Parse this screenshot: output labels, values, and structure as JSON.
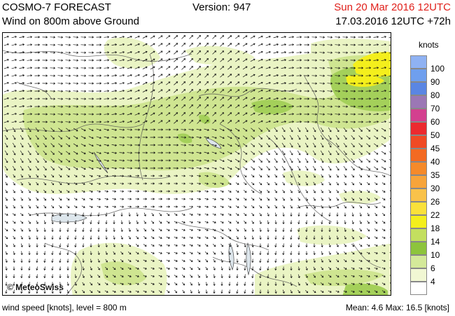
{
  "header": {
    "model": "COSMO-7 FORECAST",
    "version": "Version: 947",
    "valid_time": "Sun 20 Mar 2016 12UTC",
    "subtitle": "Wind on 800m above Ground",
    "run_info": "17.03.2016 12UTC +72h"
  },
  "map": {
    "logo": "© MeteoSwiss"
  },
  "legend": {
    "unit": "knots",
    "levels": [
      {
        "label": "100",
        "color": "#8fb2f3"
      },
      {
        "label": "90",
        "color": "#6f9fee"
      },
      {
        "label": "80",
        "color": "#5a86e3"
      },
      {
        "label": "70",
        "color": "#9b77b5"
      },
      {
        "label": "60",
        "color": "#d3408f"
      },
      {
        "label": "50",
        "color": "#ec2a2f"
      },
      {
        "label": "45",
        "color": "#f04a24"
      },
      {
        "label": "40",
        "color": "#f36a22"
      },
      {
        "label": "35",
        "color": "#f58a2a"
      },
      {
        "label": "30",
        "color": "#f7a43a"
      },
      {
        "label": "26",
        "color": "#f9c24a"
      },
      {
        "label": "22",
        "color": "#fae13a"
      },
      {
        "label": "18",
        "color": "#f4ef1c"
      },
      {
        "label": "14",
        "color": "#c3df5f"
      },
      {
        "label": "10",
        "color": "#8dc43c"
      },
      {
        "label": "6",
        "color": "#d4e99a"
      },
      {
        "label": "4",
        "color": "#f1f7d3"
      }
    ],
    "bottom_color": "#ffffff"
  },
  "footer": {
    "left": "wind speed [knots], level = 800 m",
    "stats": "Mean:   4.6 Max:   16.5 [knots]"
  }
}
